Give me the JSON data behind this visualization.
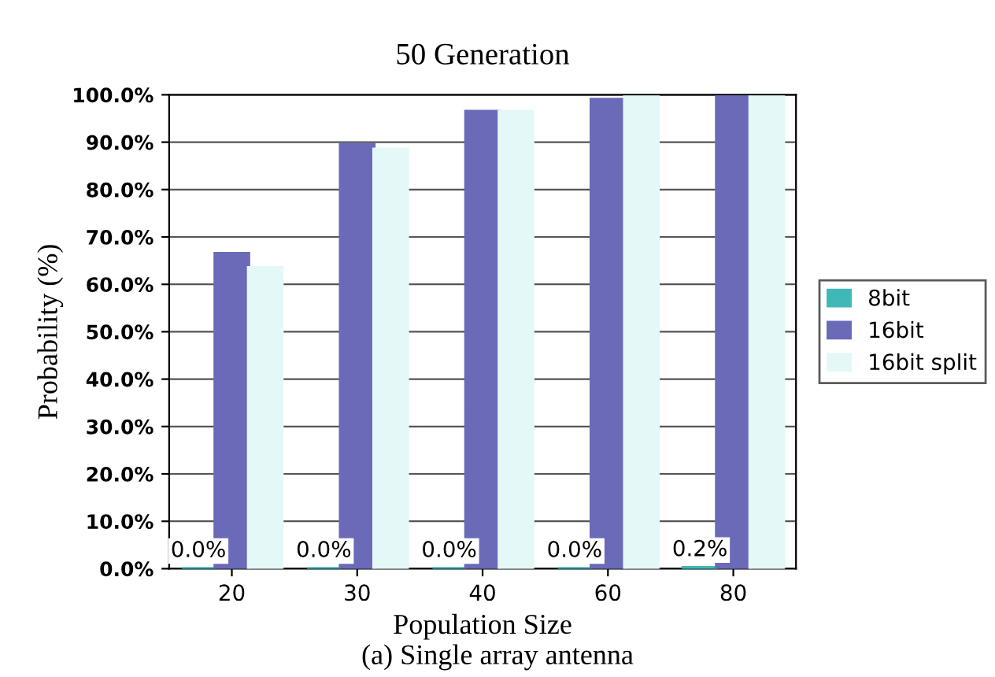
{
  "chart_data": {
    "type": "bar",
    "title": "50 Generation",
    "xlabel": "Population Size",
    "ylabel": "Probability (%)",
    "categories": [
      "20",
      "30",
      "40",
      "60",
      "80"
    ],
    "series": [
      {
        "name": "8bit",
        "color": "#40b8b8",
        "values": [
          0.0,
          0.0,
          0.0,
          0.0,
          0.2
        ],
        "value_labels": [
          "0.0%",
          "0.0%",
          "0.0%",
          "0.0%",
          "0.2%"
        ]
      },
      {
        "name": "16bit",
        "color": "#6a6ab8",
        "values": [
          66.5,
          89.5,
          96.5,
          99,
          99.5
        ]
      },
      {
        "name": "16bit split",
        "color": "#e4f8f8",
        "values": [
          63.5,
          88.5,
          96.5,
          99.5,
          99.5
        ]
      }
    ],
    "ylim": [
      0,
      100
    ],
    "yticks": [
      {
        "value": 0,
        "label": "0.0%"
      },
      {
        "value": 10,
        "label": "10.0%"
      },
      {
        "value": 20,
        "label": "20.0%"
      },
      {
        "value": 30,
        "label": "30.0%"
      },
      {
        "value": 40,
        "label": "40.0%"
      },
      {
        "value": 50,
        "label": "50.0%"
      },
      {
        "value": 60,
        "label": "60.0%"
      },
      {
        "value": 70,
        "label": "70.0%"
      },
      {
        "value": 80,
        "label": "80.0%"
      },
      {
        "value": 90,
        "label": "90.0%"
      },
      {
        "value": 100,
        "label": "100.0%"
      }
    ],
    "grid": "y",
    "legend": "right",
    "annotations": [
      "(a) Single array antenna"
    ]
  }
}
